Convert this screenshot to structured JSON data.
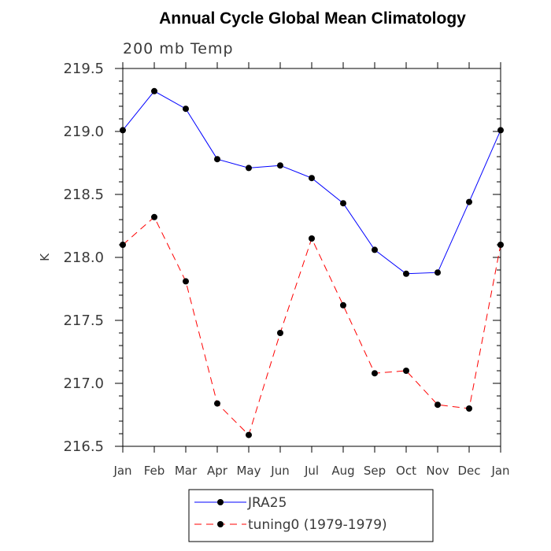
{
  "chart_data": {
    "type": "line",
    "title": "Annual Cycle Global Mean Climatology",
    "subtitle": "200 mb Temp",
    "xlabel": "",
    "ylabel": "K",
    "categories": [
      "Jan",
      "Feb",
      "Mar",
      "Apr",
      "May",
      "Jun",
      "Jul",
      "Aug",
      "Sep",
      "Oct",
      "Nov",
      "Dec",
      "Jan"
    ],
    "ylim": [
      216.5,
      219.5
    ],
    "yticks": [
      "216.5",
      "217.0",
      "217.5",
      "218.0",
      "218.5",
      "219.0",
      "219.5"
    ],
    "grid": false,
    "legend_position": "bottom",
    "series": [
      {
        "name": "JRA25",
        "color": "#0000ff",
        "dash": "solid",
        "marker": "filled-circle",
        "values": [
          219.01,
          219.32,
          219.18,
          218.78,
          218.71,
          218.73,
          218.63,
          218.43,
          218.06,
          217.87,
          217.88,
          218.44,
          219.01
        ]
      },
      {
        "name": "tuning0 (1979-1979)",
        "color": "#ff0000",
        "dash": "dashed",
        "marker": "filled-circle",
        "values": [
          218.1,
          218.32,
          217.81,
          216.84,
          216.59,
          217.4,
          218.15,
          217.62,
          217.08,
          217.1,
          216.83,
          216.8,
          218.1
        ]
      }
    ]
  }
}
